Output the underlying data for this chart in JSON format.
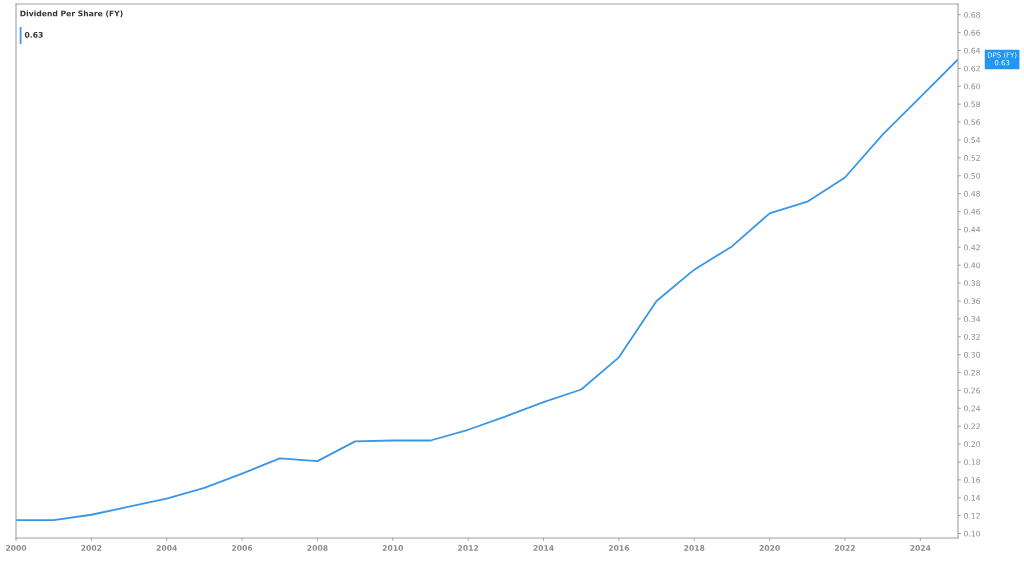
{
  "chart_data": {
    "type": "line",
    "title": "Dividend Per Share (FY)",
    "x": [
      2000,
      2001,
      2002,
      2003,
      2004,
      2005,
      2006,
      2007,
      2008,
      2009,
      2010,
      2011,
      2012,
      2013,
      2014,
      2015,
      2016,
      2017,
      2018,
      2019,
      2020,
      2021,
      2022,
      2023,
      2024,
      2025
    ],
    "series": [
      {
        "color": "#3a96e6",
        "values": [
          0.115,
          0.115,
          0.121,
          0.13,
          0.139,
          0.151,
          0.167,
          0.184,
          0.181,
          0.203,
          0.204,
          0.204,
          0.216,
          0.231,
          0.247,
          0.261,
          0.297,
          0.36,
          0.395,
          0.421,
          0.458,
          0.471,
          0.498,
          0.546,
          0.588,
          0.63
        ]
      }
    ],
    "xlim": [
      2000,
      2025
    ],
    "xticks": [
      2000,
      2002,
      2004,
      2006,
      2008,
      2010,
      2012,
      2014,
      2016,
      2018,
      2020,
      2022,
      2024
    ],
    "ylim": [
      0.095,
      0.692
    ],
    "yticks": [
      {
        "value": 0.1,
        "label": "0.10"
      },
      0.12,
      0.14,
      0.16,
      0.18,
      {
        "value": 0.2,
        "label": "0.20"
      },
      0.22,
      0.24,
      0.26,
      0.28,
      {
        "value": 0.3,
        "label": "0.30"
      },
      0.32,
      0.34,
      0.36,
      0.38,
      {
        "value": 0.4,
        "label": "0.40"
      },
      0.42,
      0.44,
      0.46,
      0.48,
      {
        "value": 0.5,
        "label": "0.50"
      },
      0.52,
      0.54,
      0.56,
      0.58,
      {
        "value": 0.6,
        "label": "0.60"
      },
      0.62,
      0.64,
      0.66,
      0.68
    ],
    "annotations": [
      "0.63",
      "DPS (FY)\n0.63"
    ]
  }
}
